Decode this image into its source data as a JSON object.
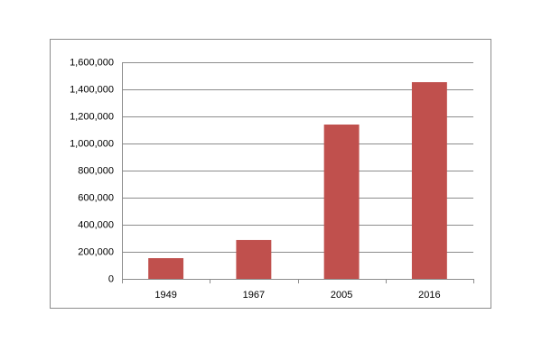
{
  "chart_data": {
    "type": "bar",
    "categories": [
      "1949",
      "1967",
      "2005",
      "2016"
    ],
    "values": [
      153000,
      287000,
      1140000,
      1453000
    ],
    "color": "#c0504d",
    "ylim": [
      0,
      1600000
    ],
    "yticks": [
      0,
      {
        "value": 200000,
        "label": "200,000"
      },
      {
        "value": 400000,
        "label": "400,000"
      },
      {
        "value": 600000,
        "label": "600,000"
      },
      {
        "value": 800000,
        "label": "800,000"
      },
      {
        "value": 1000000,
        "label": "1,000,000"
      },
      {
        "value": 1200000,
        "label": "1,200,000"
      },
      {
        "value": 1400000,
        "label": "1,400,000"
      },
      {
        "value": 1600000,
        "label": "1,600,000"
      }
    ],
    "grid": true
  }
}
